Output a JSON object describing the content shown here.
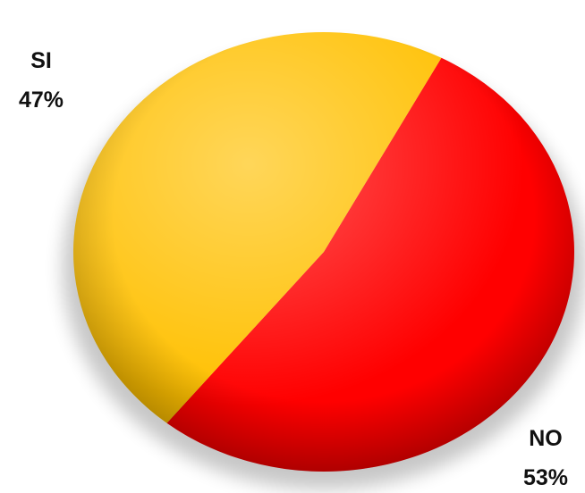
{
  "chart_data": {
    "type": "pie",
    "categories": [
      "SI",
      "NO"
    ],
    "values": [
      47,
      53
    ],
    "unit": "%",
    "labels": [
      {
        "category": "SI",
        "percent": "47%"
      },
      {
        "category": "NO",
        "percent": "53%"
      }
    ],
    "colors": [
      "#FFC000",
      "#FF0000"
    ],
    "style": "3d-shaded",
    "legend": "none"
  }
}
